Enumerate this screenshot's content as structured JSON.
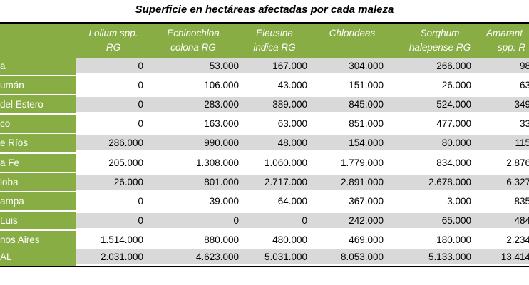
{
  "title": "Superficie en hectáreas afectadas por cada maleza",
  "headers": [
    {
      "line1": "Lolium spp.",
      "line2": "RG"
    },
    {
      "line1": "Echinochloa",
      "line2": "colona RG"
    },
    {
      "line1": "Eleusine",
      "line2": "indica RG"
    },
    {
      "line1": "Chlorideas",
      "line2": ""
    },
    {
      "line1": "Sorghum",
      "line2": "halepense RG"
    },
    {
      "line1": "Amarant",
      "line2": "spp. R"
    }
  ],
  "rows": [
    {
      "label": "a",
      "values": [
        "0",
        "53.000",
        "167.000",
        "304.000",
        "266.000",
        "98"
      ]
    },
    {
      "label": "umán",
      "values": [
        "0",
        "106.000",
        "43.000",
        "151.000",
        "26.000",
        "63"
      ]
    },
    {
      "label": " del Estero",
      "values": [
        "0",
        "283.000",
        "389.000",
        "845.000",
        "524.000",
        "349"
      ]
    },
    {
      "label": "co",
      "values": [
        "0",
        "163.000",
        "63.000",
        "851.000",
        "477.000",
        "33"
      ]
    },
    {
      "label": "e Ríos",
      "values": [
        "286.000",
        "990.000",
        "48.000",
        "154.000",
        "80.000",
        "115"
      ]
    },
    {
      "label": "a Fe",
      "values": [
        "205.000",
        "1.308.000",
        "1.060.000",
        "1.779.000",
        "834.000",
        "2.876"
      ]
    },
    {
      "label": "loba",
      "values": [
        "26.000",
        "801.000",
        "2.717.000",
        "2.891.000",
        "2.678.000",
        "6.327"
      ]
    },
    {
      "label": "ampa",
      "values": [
        "0",
        "39.000",
        "64.000",
        "367.000",
        "3.000",
        "835"
      ]
    },
    {
      "label": "Luis",
      "values": [
        "0",
        "0",
        "0",
        "242.000",
        "65.000",
        "484"
      ]
    },
    {
      "label": "nos Aires",
      "values": [
        "1.514.000",
        "880.000",
        "480.000",
        "469.000",
        "180.000",
        "2.234"
      ]
    },
    {
      "label": "AL",
      "values": [
        "2.031.000",
        "4.623.000",
        "5.031.000",
        "8.053.000",
        "5.133.000",
        "13.414"
      ]
    }
  ],
  "colors": {
    "header_green": "#88ad45",
    "row_shade": "#d9d9d9",
    "rule": "#000000"
  }
}
